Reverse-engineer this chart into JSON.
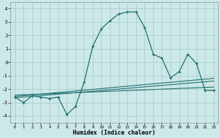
{
  "xlabel": "Humidex (Indice chaleur)",
  "bg_color": "#cce8e8",
  "grid_color": "#aacccc",
  "line_color": "#1a6b6b",
  "xlim": [
    -0.5,
    23.5
  ],
  "ylim": [
    -4.5,
    4.5
  ],
  "yticks": [
    -4,
    -3,
    -2,
    -1,
    0,
    1,
    2,
    3,
    4
  ],
  "xticks": [
    0,
    1,
    2,
    3,
    4,
    5,
    6,
    7,
    8,
    9,
    10,
    11,
    12,
    13,
    14,
    15,
    16,
    17,
    18,
    19,
    20,
    21,
    22,
    23
  ],
  "main_x": [
    0,
    1,
    2,
    3,
    4,
    5,
    6,
    7,
    8,
    9,
    10,
    11,
    12,
    13,
    14,
    15,
    16,
    17,
    18,
    19,
    20,
    21,
    22,
    23
  ],
  "main_y": [
    -2.6,
    -3.0,
    -2.5,
    -2.6,
    -2.7,
    -2.6,
    -3.9,
    -3.3,
    -1.5,
    1.2,
    2.5,
    3.1,
    3.6,
    3.75,
    3.75,
    2.6,
    0.6,
    0.3,
    -1.15,
    -0.7,
    0.6,
    -0.1,
    -2.1,
    -2.1
  ],
  "line1_x": [
    0,
    23
  ],
  "line1_y": [
    -2.55,
    -1.2
  ],
  "line2_x": [
    0,
    23
  ],
  "line2_y": [
    -2.65,
    -1.4
  ],
  "line3_x": [
    0,
    23
  ],
  "line3_y": [
    -2.45,
    -1.85
  ]
}
